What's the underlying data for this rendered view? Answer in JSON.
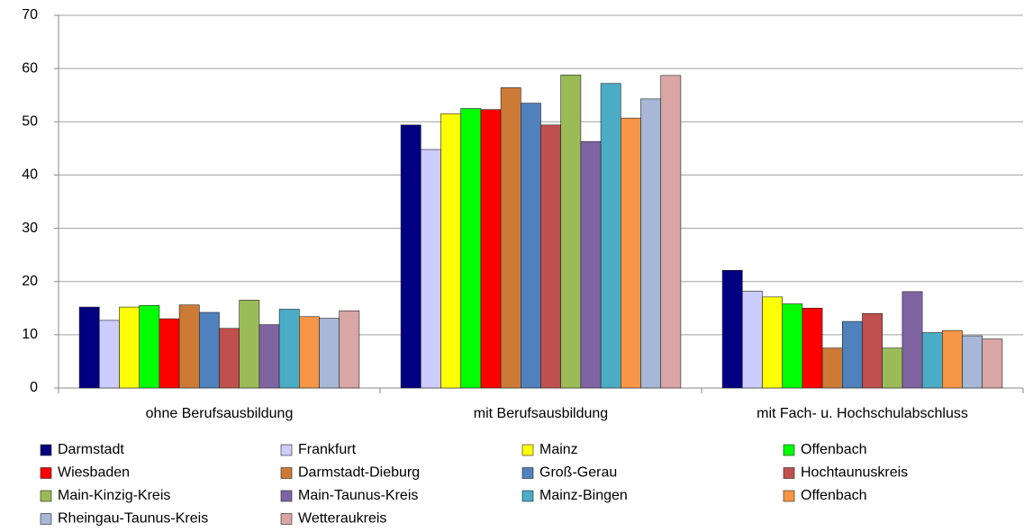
{
  "chart_data": {
    "type": "bar",
    "categories": [
      "ohne Berufsausbildung",
      "mit Berufsausbildung",
      "mit Fach- u. Hochschulabschluss"
    ],
    "series": [
      {
        "name": "Darmstadt",
        "color": "#000080",
        "values": [
          15.2,
          49.4,
          22.1
        ]
      },
      {
        "name": "Frankfurt",
        "color": "#ccccff",
        "values": [
          12.7,
          44.8,
          18.2
        ]
      },
      {
        "name": "Mainz",
        "color": "#ffff00",
        "values": [
          15.2,
          51.5,
          17.1
        ]
      },
      {
        "name": "Offenbach",
        "color": "#00ff00",
        "values": [
          15.5,
          52.5,
          15.8
        ]
      },
      {
        "name": "Wiesbaden",
        "color": "#ff0000",
        "values": [
          13.0,
          52.3,
          15.0
        ]
      },
      {
        "name": "Darmstadt-Dieburg",
        "color": "#cc7a36",
        "values": [
          15.6,
          56.4,
          7.5
        ]
      },
      {
        "name": "Groß-Gerau",
        "color": "#4f81bd",
        "values": [
          14.2,
          53.5,
          12.5
        ]
      },
      {
        "name": "Hochtaunuskreis",
        "color": "#c0504d",
        "values": [
          11.2,
          49.4,
          14.0
        ]
      },
      {
        "name": "Main-Kinzig-Kreis",
        "color": "#9bbb59",
        "values": [
          16.5,
          58.8,
          7.5
        ]
      },
      {
        "name": "Main-Taunus-Kreis",
        "color": "#8064a2",
        "values": [
          11.9,
          46.3,
          18.1
        ]
      },
      {
        "name": "Mainz-Bingen",
        "color": "#4bacc6",
        "values": [
          14.8,
          57.2,
          10.4
        ]
      },
      {
        "name": "Offenbach",
        "color": "#f79646",
        "values": [
          13.4,
          50.7,
          10.8
        ]
      },
      {
        "name": "Rheingau-Taunus-Kreis",
        "color": "#a6b7d7",
        "values": [
          13.1,
          54.3,
          9.8
        ]
      },
      {
        "name": "Wetteraukreis",
        "color": "#d9a5a5",
        "values": [
          14.5,
          58.7,
          9.2
        ]
      }
    ],
    "ylim": [
      0,
      70
    ],
    "yticks": [
      0,
      10,
      20,
      30,
      40,
      50,
      60,
      70
    ],
    "grid": true,
    "legend": "bottom"
  }
}
